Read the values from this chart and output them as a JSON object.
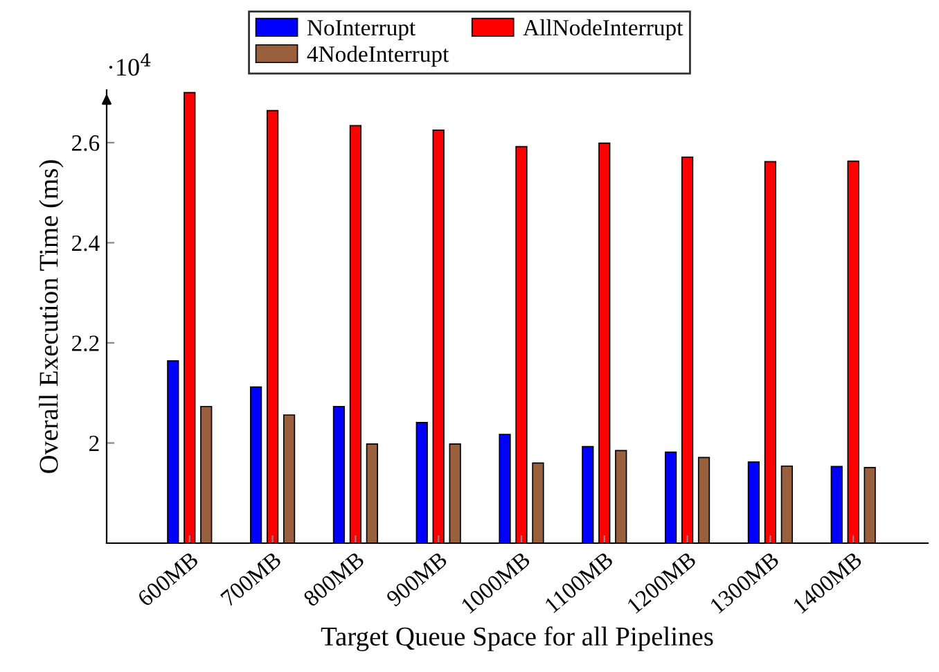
{
  "chart_data": {
    "type": "bar",
    "xlabel": "Target Queue Space for all Pipelines",
    "ylabel": "Overall Execution Time (ms)",
    "categories": [
      "600MB",
      "700MB",
      "800MB",
      "900MB",
      "1000MB",
      "1100MB",
      "1200MB",
      "1300MB",
      "1400MB"
    ],
    "series": [
      {
        "name": "NoInterrupt",
        "color": "#0000ff",
        "values": [
          2.164,
          2.112,
          2.073,
          2.041,
          2.017,
          1.993,
          1.982,
          1.962,
          1.953
        ]
      },
      {
        "name": "AllNodeInterrupt",
        "color": "#ff0000",
        "values": [
          2.7,
          2.664,
          2.634,
          2.625,
          2.592,
          2.599,
          2.571,
          2.562,
          2.563
        ]
      },
      {
        "name": "4NodeInterrupt",
        "color": "#9a5f3c",
        "values": [
          2.073,
          2.056,
          1.998,
          1.998,
          1.96,
          1.985,
          1.971,
          1.954,
          1.951
        ]
      }
    ],
    "ylim": [
      1.8,
      2.705
    ],
    "yticks": [
      2,
      2.2,
      2.4,
      2.6
    ],
    "annotations": [
      "·10$^{4}$"
    ],
    "legend": "top",
    "grid": false
  }
}
